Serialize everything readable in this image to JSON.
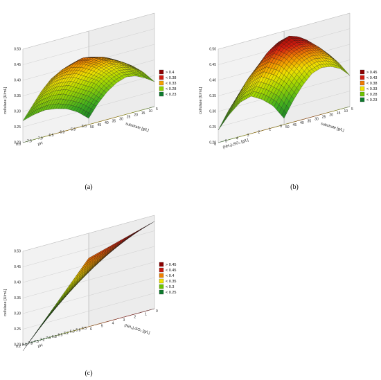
{
  "chart_data": [
    {
      "type": "surface",
      "caption": "(a)",
      "zlabel": "cellulase [U/mL]",
      "xlabel": "pH",
      "ylabel": "substrate [g/L]",
      "x_ticks": [
        "8.0",
        "7.5",
        "7.0",
        "6.5",
        "6.0",
        "5.5",
        "5.0"
      ],
      "y_ticks": [
        "5",
        "10",
        "15",
        "20",
        "25",
        "30",
        "35",
        "40",
        "45",
        "50"
      ],
      "z_ticks": [
        "0.20",
        "0.25",
        "0.30",
        "0.35",
        "0.40",
        "0.45",
        "0.50"
      ],
      "x": [
        8.0,
        5.0
      ],
      "y": [
        5,
        50
      ],
      "z_range": [
        0.2,
        0.5
      ],
      "z_grid": [
        [
          0.22,
          0.26,
          0.29,
          0.31,
          0.32,
          0.315,
          0.3,
          0.28
        ],
        [
          0.25,
          0.29,
          0.33,
          0.35,
          0.36,
          0.355,
          0.34,
          0.32
        ],
        [
          0.27,
          0.31,
          0.35,
          0.38,
          0.39,
          0.385,
          0.37,
          0.35
        ],
        [
          0.28,
          0.33,
          0.37,
          0.4,
          0.41,
          0.405,
          0.39,
          0.37
        ],
        [
          0.285,
          0.335,
          0.375,
          0.41,
          0.42,
          0.415,
          0.4,
          0.38
        ],
        [
          0.28,
          0.33,
          0.37,
          0.4,
          0.41,
          0.405,
          0.39,
          0.37
        ],
        [
          0.27,
          0.31,
          0.35,
          0.38,
          0.39,
          0.385,
          0.37,
          0.35
        ]
      ],
      "legend": [
        {
          "label": "> 0.4",
          "color": "#8b0000"
        },
        {
          "label": "< 0.38",
          "color": "#d01c10"
        },
        {
          "label": "< 0.33",
          "color": "#f4a000"
        },
        {
          "label": "< 0.28",
          "color": "#8fd400"
        },
        {
          "label": "< 0.23",
          "color": "#0e7a2e"
        }
      ]
    },
    {
      "type": "surface",
      "caption": "(b)",
      "zlabel": "cellulase [U/mL]",
      "xlabel": "(NH₄)₂SO₄ [g/L]",
      "ylabel": "substrate [g/L]",
      "x_ticks": [
        "6",
        "5",
        "4",
        "3",
        "2",
        "1",
        "0"
      ],
      "y_ticks": [
        "5",
        "10",
        "15",
        "20",
        "25",
        "30",
        "35",
        "40",
        "45",
        "50"
      ],
      "z_ticks": [
        "0.20",
        "0.25",
        "0.30",
        "0.35",
        "0.40",
        "0.45",
        "0.50"
      ],
      "x": [
        6,
        0
      ],
      "y": [
        5,
        50
      ],
      "z_range": [
        0.2,
        0.5
      ],
      "z_grid": [
        [
          0.22,
          0.27,
          0.31,
          0.34,
          0.35,
          0.345,
          0.33,
          0.3
        ],
        [
          0.27,
          0.32,
          0.36,
          0.39,
          0.4,
          0.395,
          0.38,
          0.35
        ],
        [
          0.3,
          0.35,
          0.4,
          0.43,
          0.44,
          0.435,
          0.42,
          0.39
        ],
        [
          0.32,
          0.37,
          0.42,
          0.46,
          0.48,
          0.47,
          0.45,
          0.41
        ],
        [
          0.31,
          0.36,
          0.41,
          0.45,
          0.47,
          0.46,
          0.44,
          0.4
        ],
        [
          0.28,
          0.33,
          0.38,
          0.41,
          0.43,
          0.42,
          0.4,
          0.37
        ],
        [
          0.24,
          0.29,
          0.33,
          0.36,
          0.38,
          0.37,
          0.35,
          0.32
        ]
      ],
      "legend": [
        {
          "label": "> 0.45",
          "color": "#8b0000"
        },
        {
          "label": "< 0.43",
          "color": "#d01c10"
        },
        {
          "label": "< 0.38",
          "color": "#f07a00"
        },
        {
          "label": "< 0.33",
          "color": "#f2e400"
        },
        {
          "label": "< 0.28",
          "color": "#6cc400"
        },
        {
          "label": "< 0.23",
          "color": "#0e7a2e"
        }
      ]
    },
    {
      "type": "surface",
      "caption": "(c)",
      "zlabel": "cellulase [U/mL]",
      "xlabel": "pH",
      "ylabel": "(NH₄)₂SO₄ [g/L]",
      "x_ticks": [
        "8.2",
        "8.0",
        "7.8",
        "7.5",
        "7.2",
        "7.0",
        "6.8",
        "6.5",
        "6.2",
        "6.0",
        "5.8",
        "5.5"
      ],
      "y_ticks": [
        "0",
        "1",
        "2",
        "3",
        "4",
        "5",
        "6"
      ],
      "z_ticks": [
        "0.20",
        "0.25",
        "0.30",
        "0.35",
        "0.40",
        "0.45",
        "0.50"
      ],
      "x": [
        8.2,
        5.5
      ],
      "y": [
        0,
        6
      ],
      "z_range": [
        0.2,
        0.5
      ],
      "z_grid": [
        [
          0.42,
          0.43,
          0.44,
          0.45,
          0.46,
          0.47,
          0.48
        ],
        [
          0.38,
          0.395,
          0.41,
          0.425,
          0.44,
          0.455,
          0.47
        ],
        [
          0.34,
          0.36,
          0.38,
          0.4,
          0.42,
          0.44,
          0.46
        ],
        [
          0.3,
          0.325,
          0.35,
          0.375,
          0.4,
          0.425,
          0.45
        ],
        [
          0.26,
          0.29,
          0.32,
          0.35,
          0.38,
          0.41,
          0.44
        ],
        [
          0.22,
          0.255,
          0.29,
          0.325,
          0.36,
          0.395,
          0.43
        ],
        [
          0.18,
          0.22,
          0.26,
          0.3,
          0.34,
          0.38,
          0.42
        ]
      ],
      "legend": [
        {
          "label": "> 0.45",
          "color": "#8b0000"
        },
        {
          "label": "< 0.45",
          "color": "#c81810"
        },
        {
          "label": "< 0.4",
          "color": "#f08000"
        },
        {
          "label": "< 0.35",
          "color": "#f2e400"
        },
        {
          "label": "< 0.3",
          "color": "#6cc400"
        },
        {
          "label": "< 0.25",
          "color": "#0e7a2e"
        }
      ]
    }
  ]
}
